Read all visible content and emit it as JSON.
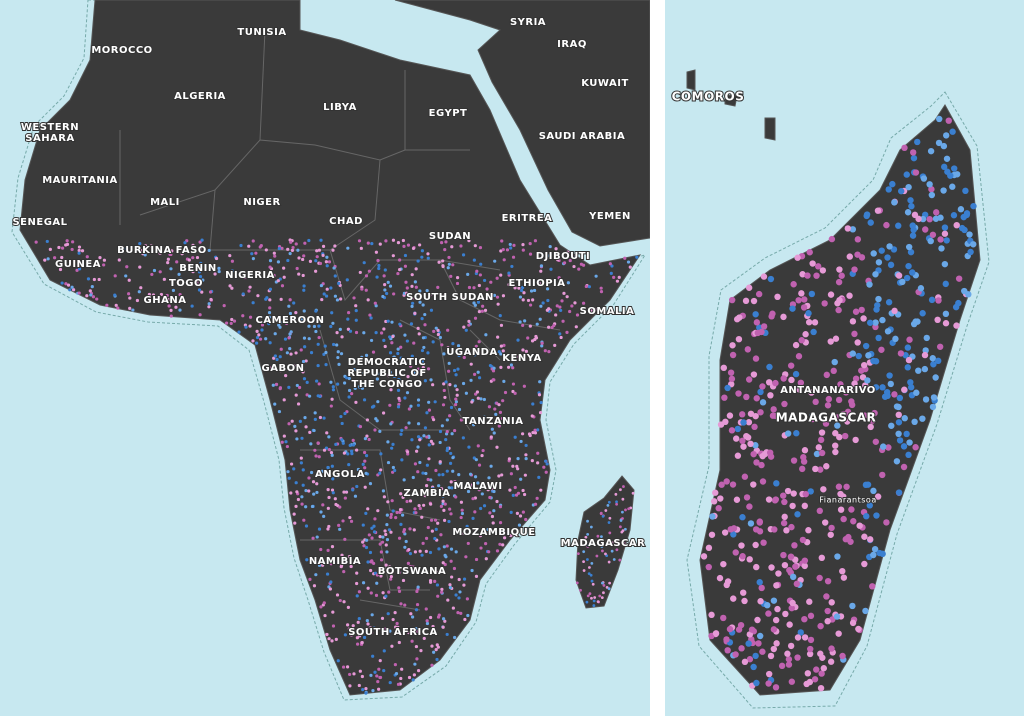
{
  "left_map": {
    "labels": {
      "tunisia": "TUNISIA",
      "morocco": "MOROCCO",
      "syria": "SYRIA",
      "iraq": "IRAQ",
      "kuwait": "KUWAIT",
      "algeria": "ALGERIA",
      "libya": "LIBYA",
      "egypt": "EGYPT",
      "western_sahara": [
        "WESTERN",
        "SAHARA"
      ],
      "saudi_arabia": "SAUDI ARABIA",
      "mauritania": "MAURITANIA",
      "mali": "MALI",
      "niger": "NIGER",
      "chad": "CHAD",
      "yemen": "YEMEN",
      "eritrea": "ERITREA",
      "senegal": "SENEGAL",
      "sudan": "SUDAN",
      "burkina_faso": "BURKINA FASO",
      "djibouti": "DJIBOUTI",
      "guinea": "GUINEA",
      "benin": "BENIN",
      "nigeria": "NIGERIA",
      "togo": "TOGO",
      "ethiopia": "ETHIOPIA",
      "ghana": "GHANA",
      "south_sudan": "SOUTH SUDAN",
      "somalia": "SOMALIA",
      "cameroon": "CAMEROON",
      "uganda": "UGANDA",
      "kenya": "KENYA",
      "drc": [
        "DEMOCRATIC",
        "REPUBLIC OF",
        "THE CONGO"
      ],
      "gabon": "GABON",
      "tanzania": "TANZANIA",
      "angola": "ANGOLA",
      "zambia": "ZAMBIA",
      "malawi": "MALAWI",
      "mozambique": "MOZAMBIQUE",
      "madagascar": "MADAGASCAR",
      "namibia": "NAMIBIA",
      "botswana": "BOTSWANA",
      "south_africa": "SOUTH AFRICA"
    }
  },
  "right_map": {
    "labels": {
      "comoros": "COMOROS",
      "antananarivo": "ANTANANARIVO",
      "madagascar": "MADAGASCAR",
      "fianarantsoa": "Fianarantsoa"
    }
  }
}
